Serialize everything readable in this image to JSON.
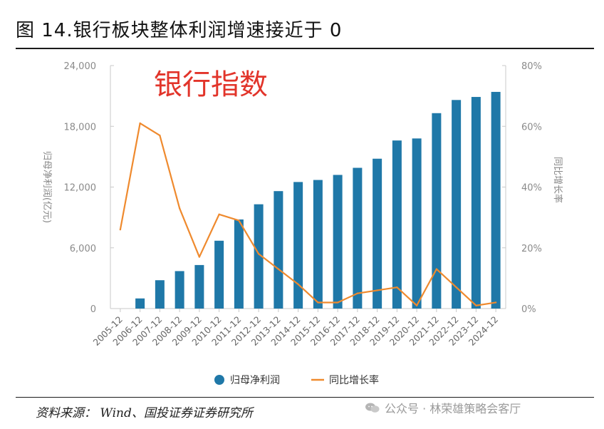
{
  "figure": {
    "title": "图 14.银行板块整体利润增速接近于 0",
    "source": "资料来源： Wind、国投证券证券研究所",
    "watermark": "公众号 · 林荣雄策略会客厅"
  },
  "colors": {
    "bar": "#1f78a8",
    "line": "#ef8a2e",
    "overlay_text": "#e2342a",
    "axis": "#c8c8c8"
  },
  "chart_data": {
    "type": "bar",
    "overlay_text": "银行指数",
    "categories": [
      "2005-12",
      "2006-12",
      "2007-12",
      "2008-12",
      "2009-12",
      "2010-12",
      "2011-12",
      "2012-12",
      "2013-12",
      "2014-12",
      "2015-12",
      "2016-12",
      "2017-12",
      "2018-12",
      "2019-12",
      "2020-12",
      "2021-12",
      "2022-12",
      "2023-12",
      "2024-12"
    ],
    "series": [
      {
        "name": "归母净利润",
        "type": "bar",
        "axis": "left",
        "values": [
          null,
          1000,
          2800,
          3700,
          4300,
          6700,
          8800,
          10300,
          11600,
          12500,
          12700,
          13200,
          13900,
          14800,
          16600,
          16800,
          19300,
          20600,
          20900,
          21400
        ]
      },
      {
        "name": "同比增长率",
        "type": "line",
        "axis": "right",
        "values": [
          26,
          61,
          57,
          33,
          17,
          31,
          29,
          18,
          13,
          8,
          2,
          2,
          5,
          6,
          7,
          1,
          13,
          7,
          1,
          2
        ]
      }
    ],
    "ylabel": "归母净利润(亿元)",
    "ylabel_right": "同比增长率",
    "ylim": [
      0,
      24000
    ],
    "ylim_right": [
      0,
      80
    ],
    "y_ticks": [
      "0",
      "6,000",
      "12,000",
      "18,000",
      "24,000"
    ],
    "y_tick_values": [
      0,
      6000,
      12000,
      18000,
      24000
    ],
    "y_right_ticks": [
      "0%",
      "20%",
      "40%",
      "60%",
      "80%"
    ],
    "y_right_tick_values": [
      0,
      20,
      40,
      60,
      80
    ],
    "legend": [
      "归母净利润",
      "同比增长率"
    ],
    "legend_position": "bottom",
    "grid": false
  }
}
